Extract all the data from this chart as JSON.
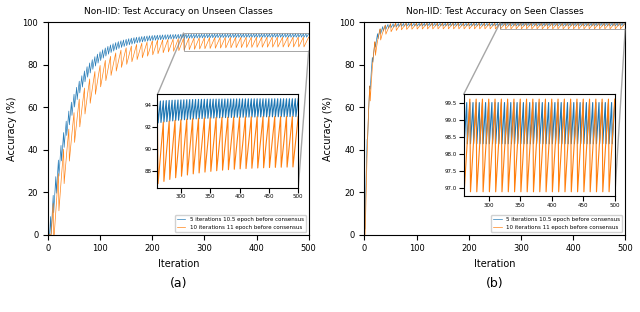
{
  "title_a": "Non-IID: Test Accuracy on Unseen Classes",
  "title_b": "Non-IID: Test Accuracy on Seen Classes",
  "xlabel": "Iteration",
  "ylabel": "Accuracy (%)",
  "label_blue_a": "5 iterations 10.5 epoch before consensus",
  "label_orange_a": "10 iterations 11 epoch before consensus",
  "label_blue_b": "5 iterations 10.5 epoch before consensus",
  "label_orange_b": "10 iterations 11 epoch before consensus",
  "color_blue": "#1f77b4",
  "color_orange": "#ff7f0e",
  "iterations": 500,
  "caption_a": "(a)",
  "caption_b": "(b)"
}
